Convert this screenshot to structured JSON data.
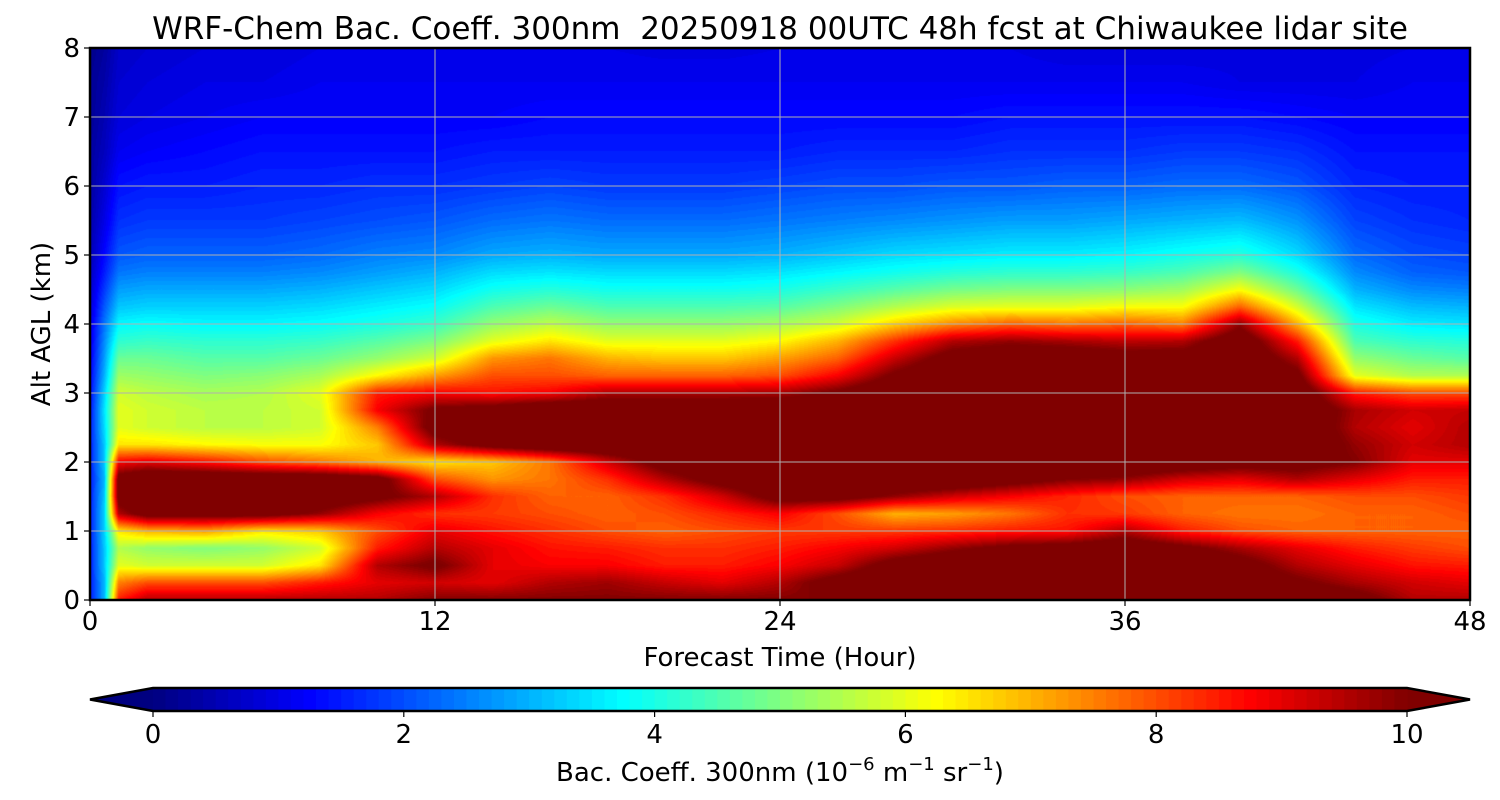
{
  "chart_data": {
    "type": "heatmap",
    "title": "WRF-Chem Bac. Coeff. 300nm  20250918 00UTC 48h fcst at Chiwaukee lidar site",
    "xlabel": "Forecast Time (Hour)",
    "ylabel": "Alt AGL (km)",
    "xlim": [
      0,
      48
    ],
    "ylim": [
      0,
      8
    ],
    "xticks": [
      0,
      12,
      24,
      36,
      48
    ],
    "yticks": [
      0,
      1,
      2,
      3,
      4,
      5,
      6,
      7,
      8
    ],
    "grid": true,
    "colormap": "jet",
    "colorbar": {
      "label_main": "Bac. Coeff. 300nm  (10",
      "label_exp1": "−6",
      "label_unit1": " m",
      "label_exp2": "−1",
      "label_unit2": " sr",
      "label_exp3": "−1",
      "label_close": ")",
      "range": [
        0,
        10
      ],
      "ticks": [
        0,
        2,
        4,
        6,
        8,
        10
      ],
      "extend": "both",
      "orientation": "horizontal",
      "placement": "bottom"
    },
    "x": [
      0,
      0.5,
      1,
      2,
      4,
      6,
      8,
      10,
      12,
      14,
      16,
      18,
      20,
      22,
      24,
      26,
      28,
      30,
      32,
      34,
      36,
      38,
      40,
      42,
      44,
      46,
      48
    ],
    "y": [
      0,
      0.25,
      0.5,
      0.75,
      1.0,
      1.25,
      1.5,
      1.75,
      2.0,
      2.25,
      2.5,
      2.75,
      3.0,
      3.25,
      3.5,
      3.75,
      4.0,
      4.25,
      4.5,
      4.75,
      5.0,
      5.5,
      6.0,
      6.5,
      7.0,
      7.5,
      8.0
    ],
    "z": [
      [
        1.5,
        3.0,
        8.5,
        9.5,
        9.5,
        9.5,
        9.5,
        9.5,
        10,
        10,
        10,
        10,
        10,
        10,
        10,
        10,
        11,
        11,
        11,
        11,
        11,
        11,
        11,
        11,
        10.5,
        9.5,
        9.5
      ],
      [
        1.5,
        3.0,
        7.5,
        8.0,
        8.0,
        8.0,
        8.5,
        9.0,
        9.2,
        9.0,
        9.5,
        9.7,
        9.3,
        9.0,
        9.5,
        10.5,
        11,
        11,
        11,
        11,
        11,
        11,
        10.8,
        10.2,
        9.6,
        9.2,
        9.0
      ],
      [
        1.5,
        3.2,
        6.0,
        5.8,
        5.8,
        5.8,
        6.5,
        9.5,
        10.2,
        9.0,
        8.8,
        8.8,
        8.5,
        8.5,
        8.8,
        9.3,
        10.5,
        11,
        11,
        11,
        11,
        11,
        10.5,
        9.5,
        9.0,
        8.6,
        8.5
      ],
      [
        1.5,
        3.2,
        5.5,
        5.2,
        5.0,
        5.2,
        5.8,
        8.5,
        9.5,
        9.0,
        8.6,
        8.5,
        8.3,
        8.3,
        8.5,
        8.8,
        9.2,
        9.8,
        10.3,
        10.5,
        10.8,
        10.3,
        9.6,
        9.0,
        8.5,
        8.2,
        8.0
      ],
      [
        1.5,
        3.3,
        6.5,
        7.0,
        7.2,
        6.5,
        6.8,
        8.0,
        9.0,
        8.6,
        8.3,
        8.0,
        7.8,
        8.0,
        8.2,
        8.2,
        8.2,
        8.3,
        8.5,
        8.6,
        9.5,
        8.5,
        8.0,
        7.8,
        7.8,
        7.8,
        7.8
      ],
      [
        1.5,
        3.3,
        9.5,
        10.5,
        10.5,
        10.5,
        9.8,
        8.8,
        8.3,
        8.2,
        8.0,
        7.8,
        8.0,
        8.4,
        8.8,
        8.0,
        7.0,
        7.2,
        7.6,
        8.3,
        8.2,
        7.8,
        7.6,
        7.6,
        7.8,
        7.8,
        8.0
      ],
      [
        1.5,
        3.2,
        10.5,
        11,
        11,
        11,
        10.8,
        10.3,
        9.5,
        8.3,
        7.8,
        7.8,
        8.3,
        9.2,
        10.5,
        10.5,
        9.8,
        9.2,
        8.8,
        8.4,
        8.0,
        7.8,
        7.8,
        7.8,
        8.0,
        8.0,
        8.2
      ],
      [
        1.5,
        3.0,
        10.5,
        11,
        11,
        11,
        11,
        10.5,
        8.0,
        7.3,
        7.6,
        8.3,
        9.5,
        10.5,
        11,
        11,
        11,
        11,
        10.5,
        10.0,
        9.8,
        9.2,
        9.0,
        9.5,
        9.0,
        8.5,
        8.5
      ],
      [
        1.5,
        3.2,
        8.8,
        9.0,
        8.6,
        8.0,
        7.6,
        7.0,
        6.5,
        6.8,
        7.6,
        9.2,
        10.5,
        11,
        11,
        11,
        11,
        11,
        11,
        11,
        11,
        10.8,
        10.5,
        10.5,
        10.0,
        9.0,
        9.0
      ],
      [
        1.5,
        3.2,
        6.5,
        6.5,
        6.3,
        6.2,
        6.2,
        6.8,
        9.5,
        10.5,
        11,
        11,
        11,
        11,
        11,
        11,
        11,
        11,
        11,
        11,
        11,
        11,
        11,
        11,
        9.8,
        9.2,
        9.5
      ],
      [
        1.5,
        3.4,
        6.0,
        5.8,
        5.6,
        5.6,
        5.8,
        7.5,
        10.5,
        11,
        11,
        11,
        11,
        11,
        11,
        11,
        11,
        11,
        11,
        11,
        11,
        11,
        11,
        11,
        9.5,
        9.0,
        9.5
      ],
      [
        1.4,
        3.5,
        6.0,
        5.8,
        5.6,
        5.6,
        5.8,
        8.8,
        10.2,
        10.5,
        11,
        11,
        11,
        11,
        11,
        11,
        11,
        11,
        11,
        11,
        11,
        11,
        11,
        11,
        9.6,
        9.2,
        9.3
      ],
      [
        1.3,
        3.3,
        5.8,
        5.6,
        5.4,
        5.5,
        6.0,
        8.5,
        8.8,
        8.6,
        8.8,
        9.5,
        9.5,
        9.5,
        9.6,
        10.2,
        11,
        11,
        11,
        11,
        11,
        11,
        11,
        10.8,
        8.5,
        8.0,
        8.0
      ],
      [
        1.2,
        3.0,
        5.3,
        5.2,
        5.0,
        5.1,
        5.4,
        6.3,
        7.2,
        8.0,
        8.0,
        7.8,
        7.8,
        7.8,
        8.0,
        8.8,
        10.2,
        11,
        11,
        11,
        11,
        11,
        11,
        10.3,
        6.0,
        5.5,
        5.5
      ],
      [
        1.1,
        2.8,
        4.8,
        4.8,
        4.6,
        4.6,
        4.8,
        5.2,
        5.8,
        7.3,
        7.6,
        7.0,
        6.8,
        6.8,
        7.2,
        7.8,
        9.3,
        10.5,
        10.8,
        10.8,
        10.5,
        10.5,
        11,
        9.5,
        5.2,
        4.8,
        4.6
      ],
      [
        1.0,
        2.6,
        4.2,
        4.3,
        4.2,
        4.2,
        4.3,
        4.6,
        5.0,
        6.0,
        6.5,
        6.0,
        6.0,
        6.0,
        6.3,
        7.0,
        8.3,
        9.5,
        9.8,
        9.6,
        9.4,
        9.5,
        10.8,
        8.5,
        4.5,
        4.2,
        4.1
      ],
      [
        0.9,
        2.4,
        3.7,
        3.8,
        3.7,
        3.7,
        3.8,
        4.0,
        4.3,
        5.2,
        5.6,
        5.2,
        5.2,
        5.2,
        5.4,
        5.8,
        6.7,
        7.4,
        7.8,
        7.6,
        7.8,
        7.5,
        9.8,
        7.0,
        4.0,
        3.6,
        3.5
      ],
      [
        0.8,
        2.1,
        3.2,
        3.3,
        3.3,
        3.3,
        3.4,
        3.6,
        3.8,
        4.5,
        4.8,
        4.5,
        4.5,
        4.5,
        4.6,
        5.0,
        5.5,
        5.9,
        6.0,
        6.0,
        6.2,
        6.2,
        7.8,
        5.8,
        3.5,
        3.1,
        3.0
      ],
      [
        0.7,
        1.8,
        2.8,
        2.9,
        2.9,
        2.9,
        3.0,
        3.2,
        3.4,
        3.9,
        4.1,
        3.9,
        3.9,
        3.9,
        4.0,
        4.3,
        4.6,
        4.9,
        5.0,
        5.0,
        5.1,
        5.3,
        6.2,
        4.8,
        3.0,
        2.6,
        2.5
      ],
      [
        0.6,
        1.5,
        2.4,
        2.5,
        2.5,
        2.5,
        2.6,
        2.8,
        3.0,
        3.4,
        3.5,
        3.4,
        3.4,
        3.4,
        3.5,
        3.7,
        3.9,
        4.1,
        4.2,
        4.2,
        4.3,
        4.5,
        5.0,
        4.0,
        2.6,
        2.2,
        2.1
      ],
      [
        0.5,
        1.3,
        2.1,
        2.2,
        2.2,
        2.2,
        2.3,
        2.5,
        2.6,
        2.9,
        3.0,
        2.9,
        2.9,
        2.9,
        3.0,
        3.2,
        3.4,
        3.5,
        3.6,
        3.6,
        3.7,
        3.9,
        4.1,
        3.4,
        2.3,
        2.0,
        1.9
      ],
      [
        0.4,
        1.0,
        1.7,
        1.8,
        1.8,
        1.8,
        1.9,
        2.0,
        2.1,
        2.3,
        2.4,
        2.3,
        2.3,
        2.3,
        2.4,
        2.5,
        2.6,
        2.7,
        2.8,
        2.8,
        2.9,
        3.0,
        3.1,
        2.7,
        1.9,
        1.7,
        1.6
      ],
      [
        0.3,
        0.8,
        1.4,
        1.5,
        1.5,
        1.6,
        1.6,
        1.7,
        1.7,
        1.8,
        1.9,
        1.8,
        1.8,
        1.8,
        1.9,
        2.0,
        2.0,
        2.1,
        2.1,
        2.2,
        2.2,
        2.3,
        2.3,
        2.1,
        1.6,
        1.5,
        1.5
      ],
      [
        0.3,
        0.6,
        1.1,
        1.2,
        1.3,
        1.4,
        1.4,
        1.4,
        1.4,
        1.5,
        1.5,
        1.5,
        1.5,
        1.5,
        1.5,
        1.6,
        1.6,
        1.6,
        1.7,
        1.7,
        1.7,
        1.8,
        1.8,
        1.7,
        1.4,
        1.4,
        1.4
      ],
      [
        0.2,
        0.5,
        0.9,
        1.0,
        1.1,
        1.2,
        1.2,
        1.2,
        1.2,
        1.2,
        1.3,
        1.3,
        1.3,
        1.3,
        1.3,
        1.3,
        1.3,
        1.3,
        1.4,
        1.4,
        1.4,
        1.4,
        1.4,
        1.3,
        1.2,
        1.2,
        1.2
      ],
      [
        0.2,
        0.4,
        0.8,
        0.9,
        1.0,
        1.0,
        1.1,
        1.1,
        1.1,
        1.1,
        1.1,
        1.1,
        1.1,
        1.1,
        1.1,
        1.1,
        1.1,
        1.1,
        1.1,
        1.1,
        1.1,
        1.1,
        1.0,
        1.0,
        1.0,
        1.1,
        1.1
      ],
      [
        0.1,
        0.3,
        0.7,
        0.8,
        0.9,
        0.9,
        1.0,
        1.0,
        1.0,
        1.0,
        1.0,
        1.0,
        0.95,
        0.95,
        1.0,
        1.0,
        1.0,
        1.0,
        1.0,
        0.9,
        0.9,
        0.9,
        0.95,
        0.95,
        0.95,
        1.0,
        1.0
      ]
    ]
  }
}
